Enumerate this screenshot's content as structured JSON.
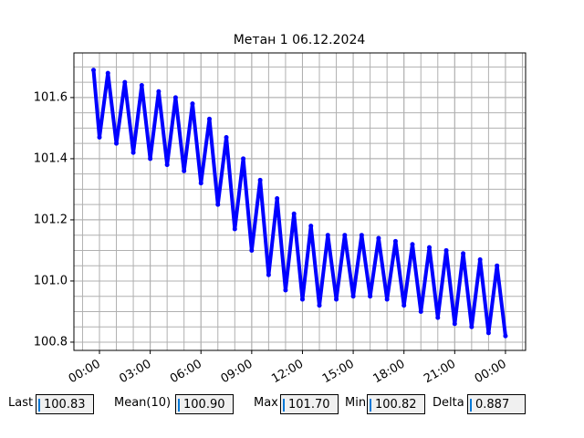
{
  "chart_data": {
    "type": "line",
    "title": "Метан 1 06.12.2024",
    "x": [
      -0.35,
      0,
      0.5,
      1,
      1.5,
      2,
      2.5,
      3,
      3.5,
      4,
      4.5,
      5,
      5.5,
      6,
      6.5,
      7,
      7.5,
      8,
      8.5,
      9,
      9.5,
      10,
      10.5,
      11,
      11.5,
      12,
      12.5,
      13,
      13.5,
      14,
      14.5,
      15,
      15.5,
      16,
      16.5,
      17,
      17.5,
      18,
      18.5,
      19,
      19.5,
      20,
      20.5,
      21,
      21.5,
      22,
      22.5,
      23,
      23.5,
      24
    ],
    "series": [
      {
        "color": "#0000ff",
        "values": [
          101.69,
          101.47,
          101.68,
          101.45,
          101.65,
          101.42,
          101.64,
          101.4,
          101.62,
          101.38,
          101.6,
          101.36,
          101.58,
          101.32,
          101.53,
          101.25,
          101.47,
          101.17,
          101.4,
          101.1,
          101.33,
          101.02,
          101.27,
          100.97,
          101.22,
          100.94,
          101.18,
          100.92,
          101.15,
          100.94,
          101.15,
          100.95,
          101.15,
          100.95,
          101.14,
          100.94,
          101.13,
          100.92,
          101.12,
          100.9,
          101.11,
          100.88,
          101.1,
          100.86,
          101.09,
          100.85,
          101.07,
          100.83,
          101.05,
          100.82
        ]
      }
    ],
    "xlim": [
      -1.51,
      25.19
    ],
    "xticks": [
      {
        "value": 0,
        "label": "00:00"
      },
      {
        "value": 3,
        "label": "03:00"
      },
      {
        "value": 6,
        "label": "06:00"
      },
      {
        "value": 9,
        "label": "09:00"
      },
      {
        "value": 12,
        "label": "12:00"
      },
      {
        "value": 15,
        "label": "15:00"
      },
      {
        "value": 18,
        "label": "18:00"
      },
      {
        "value": 21,
        "label": "21:00"
      },
      {
        "value": 24,
        "label": "00:00"
      }
    ],
    "ylim": [
      100.773,
      101.746
    ],
    "yticks": [
      100.8,
      {
        "value": 101.0,
        "label": "101.0"
      },
      101.2,
      101.4,
      101.6
    ],
    "grid": true
  },
  "stats": [
    {
      "label": "Last",
      "value": "100.83"
    },
    {
      "label": "Mean(10)",
      "value": "100.90"
    },
    {
      "label": "Max",
      "value": "101.70"
    },
    {
      "label": "Min",
      "value": "100.82"
    },
    {
      "label": "Delta",
      "value": " 0.887"
    }
  ]
}
